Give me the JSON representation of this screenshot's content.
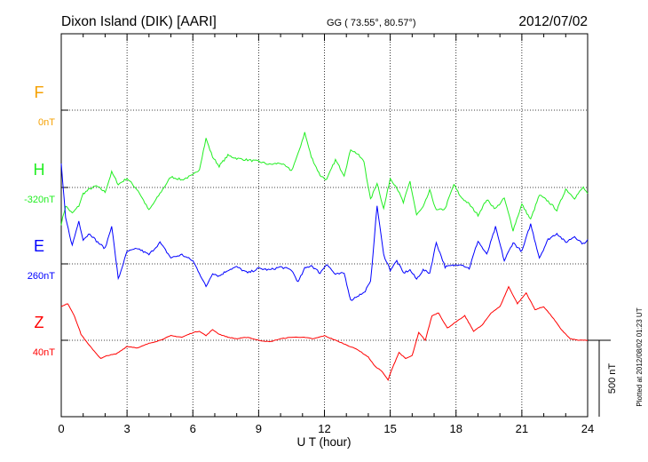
{
  "header": {
    "station": "Dixon Island (DIK)  [AARI]",
    "coords": "GG ( 73.55°,  80.57°)",
    "date": "2012/07/02"
  },
  "footer": {
    "plotted_note": "Plotted at 2012/08/02 01:23 UT",
    "scale_label": "500 nT"
  },
  "colors": {
    "F": "#f5a000",
    "H": "#22ee22",
    "E": "#0000ff",
    "Z": "#ff0000",
    "axis": "#000000"
  },
  "chart_data": {
    "type": "line",
    "title": "Dixon Island (DIK)  [AARI]",
    "xlabel": "U T (hour)",
    "ylabel": "",
    "xlim": [
      0,
      24
    ],
    "x_ticks": [
      0,
      3,
      6,
      9,
      12,
      15,
      18,
      21,
      24
    ],
    "x_tick_labels": [
      "0",
      "3",
      "6",
      "9",
      "12",
      "15",
      "18",
      "21",
      "24"
    ],
    "grid": true,
    "scale_bar_nT": 500,
    "series": [
      {
        "name": "F",
        "label": "F",
        "baseline": "0nT",
        "color": "#f5a000",
        "x": [],
        "values": []
      },
      {
        "name": "H",
        "label": "H",
        "baseline": "-320nT",
        "color": "#22ee22",
        "x": [
          0,
          0.2,
          0.5,
          0.8,
          1.0,
          1.3,
          1.6,
          2.0,
          2.3,
          2.6,
          3.0,
          3.5,
          4.0,
          4.5,
          5.0,
          5.5,
          6.0,
          6.3,
          6.6,
          6.9,
          7.2,
          7.6,
          8.0,
          8.5,
          9.0,
          9.5,
          10.0,
          10.5,
          10.8,
          11.1,
          11.4,
          11.8,
          12.1,
          12.5,
          12.9,
          13.2,
          13.5,
          13.8,
          14.1,
          14.4,
          14.7,
          15.0,
          15.3,
          15.6,
          15.9,
          16.2,
          16.5,
          16.8,
          17.1,
          17.5,
          17.9,
          18.2,
          18.6,
          19.0,
          19.4,
          19.8,
          20.2,
          20.6,
          21.0,
          21.4,
          21.8,
          22.2,
          22.6,
          23.0,
          23.4,
          23.8,
          24.0
        ],
        "values": [
          -240,
          -120,
          -170,
          -120,
          -40,
          -10,
          10,
          -30,
          100,
          20,
          60,
          -20,
          -150,
          -40,
          70,
          50,
          80,
          120,
          320,
          200,
          140,
          210,
          190,
          180,
          170,
          150,
          160,
          110,
          220,
          360,
          200,
          80,
          50,
          180,
          80,
          250,
          220,
          170,
          -80,
          30,
          -140,
          60,
          0,
          -100,
          40,
          -180,
          -130,
          -20,
          -150,
          -140,
          20,
          -60,
          -110,
          -180,
          -80,
          -140,
          -70,
          -280,
          -110,
          -210,
          -50,
          -90,
          -150,
          -10,
          -70,
          0,
          -40
        ]
      },
      {
        "name": "E",
        "label": "E",
        "baseline": "260nT",
        "color": "#0000ff",
        "x": [
          0,
          0.2,
          0.5,
          0.8,
          1.0,
          1.3,
          1.6,
          2.0,
          2.3,
          2.6,
          3.0,
          3.5,
          4.0,
          4.5,
          5.0,
          5.5,
          6.0,
          6.3,
          6.6,
          6.9,
          7.2,
          7.6,
          8.0,
          8.5,
          9.0,
          9.5,
          10.0,
          10.5,
          10.8,
          11.1,
          11.4,
          11.8,
          12.1,
          12.5,
          12.9,
          13.2,
          13.5,
          13.8,
          14.1,
          14.4,
          14.7,
          15.0,
          15.3,
          15.6,
          15.9,
          16.2,
          16.5,
          16.8,
          17.1,
          17.5,
          17.9,
          18.2,
          18.6,
          19.0,
          19.4,
          19.8,
          20.2,
          20.6,
          21.0,
          21.4,
          21.8,
          22.2,
          22.6,
          23.0,
          23.4,
          23.8,
          24.0
        ],
        "values": [
          650,
          300,
          120,
          280,
          160,
          200,
          150,
          100,
          250,
          -100,
          80,
          100,
          60,
          140,
          40,
          60,
          20,
          -60,
          -150,
          -60,
          -80,
          -40,
          -20,
          -60,
          -30,
          -40,
          -20,
          -40,
          -120,
          -30,
          -10,
          -60,
          0,
          -70,
          -60,
          -240,
          -210,
          -190,
          -120,
          380,
          60,
          -40,
          20,
          -60,
          -40,
          -100,
          -40,
          -60,
          140,
          -20,
          -10,
          0,
          -30,
          150,
          60,
          240,
          20,
          140,
          80,
          260,
          40,
          160,
          200,
          140,
          180,
          130,
          160
        ]
      },
      {
        "name": "Z",
        "label": "Z",
        "baseline": "40nT",
        "color": "#ff0000",
        "x": [
          0,
          0.3,
          0.6,
          0.9,
          1.2,
          1.5,
          1.8,
          2.1,
          2.5,
          3.0,
          3.5,
          4.0,
          4.5,
          5.0,
          5.5,
          6.0,
          6.3,
          6.6,
          6.9,
          7.2,
          7.6,
          8.0,
          8.5,
          9.0,
          9.5,
          10.0,
          10.5,
          11.0,
          11.5,
          12.0,
          12.5,
          13.0,
          13.5,
          14.0,
          14.3,
          14.6,
          14.9,
          15.1,
          15.4,
          15.7,
          16.0,
          16.3,
          16.6,
          16.9,
          17.2,
          17.6,
          18.0,
          18.4,
          18.8,
          19.2,
          19.6,
          20.0,
          20.4,
          20.8,
          21.2,
          21.6,
          22.0,
          22.4,
          22.8,
          23.2,
          23.6,
          24.0
        ],
        "values": [
          220,
          240,
          160,
          40,
          -20,
          -70,
          -120,
          -100,
          -90,
          -40,
          -50,
          -20,
          0,
          30,
          20,
          50,
          60,
          30,
          70,
          40,
          20,
          10,
          20,
          0,
          -10,
          10,
          20,
          20,
          10,
          30,
          0,
          -30,
          -60,
          -110,
          -170,
          -200,
          -260,
          -180,
          -80,
          -120,
          -100,
          50,
          0,
          160,
          180,
          80,
          120,
          160,
          60,
          100,
          180,
          220,
          350,
          240,
          310,
          200,
          220,
          150,
          70,
          10,
          0,
          0
        ]
      }
    ]
  }
}
